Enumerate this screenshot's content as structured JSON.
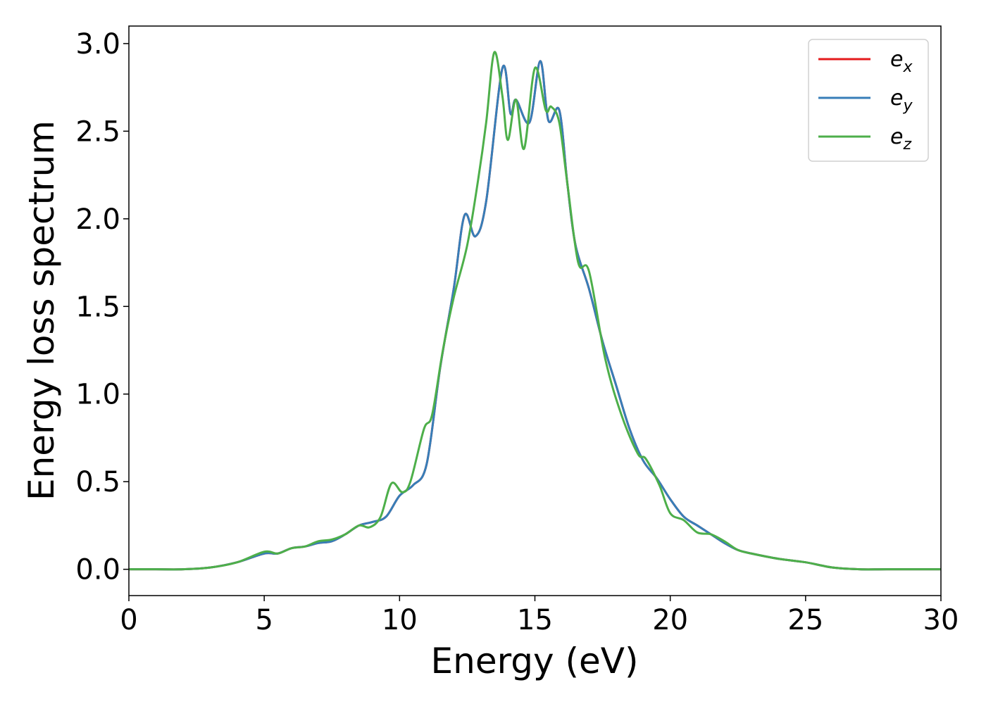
{
  "chart_data": {
    "type": "line",
    "title": "",
    "xlabel": "Energy (eV)",
    "ylabel": "Energy loss spectrum",
    "xlim": [
      0,
      30
    ],
    "ylim": [
      -0.15,
      3.1
    ],
    "xticks": [
      0,
      5,
      10,
      15,
      20,
      25,
      30
    ],
    "yticks": [
      0.0,
      0.5,
      1.0,
      1.5,
      2.0,
      2.5,
      3.0
    ],
    "xtick_labels": [
      "0",
      "5",
      "10",
      "15",
      "20",
      "25",
      "30"
    ],
    "ytick_labels": [
      "0.0",
      "0.5",
      "1.0",
      "1.5",
      "2.0",
      "2.5",
      "3.0"
    ],
    "grid": false,
    "legend_position": "top-right",
    "series": [
      {
        "name": "e",
        "subscript": "x",
        "color": "#e41a1c",
        "x": [
          0,
          1,
          2,
          3,
          4,
          5,
          5.5,
          6,
          6.5,
          7,
          7.5,
          8,
          8.5,
          9,
          9.5,
          10,
          10.5,
          11,
          11.5,
          12,
          12.4,
          12.8,
          13.2,
          13.8,
          14.1,
          14.3,
          14.8,
          15.2,
          15.5,
          15.9,
          16.2,
          16.5,
          17,
          17.5,
          18,
          18.5,
          19,
          19.5,
          20,
          20.5,
          21,
          21.5,
          22,
          22.5,
          23,
          24,
          25,
          26,
          27,
          28,
          30
        ],
        "y": [
          0.0,
          0.0,
          0.0,
          0.01,
          0.04,
          0.09,
          0.09,
          0.12,
          0.13,
          0.15,
          0.16,
          0.2,
          0.25,
          0.27,
          0.3,
          0.42,
          0.48,
          0.6,
          1.15,
          1.6,
          2.02,
          1.9,
          2.1,
          2.86,
          2.6,
          2.68,
          2.55,
          2.9,
          2.56,
          2.62,
          2.2,
          1.85,
          1.6,
          1.3,
          1.05,
          0.8,
          0.62,
          0.52,
          0.4,
          0.3,
          0.25,
          0.2,
          0.15,
          0.11,
          0.09,
          0.06,
          0.04,
          0.01,
          0.0,
          0.0,
          0.0
        ]
      },
      {
        "name": "e",
        "subscript": "y",
        "color": "#377eb8",
        "x": [
          0,
          1,
          2,
          3,
          4,
          5,
          5.5,
          6,
          6.5,
          7,
          7.5,
          8,
          8.5,
          9,
          9.5,
          10,
          10.5,
          11,
          11.5,
          12,
          12.4,
          12.8,
          13.2,
          13.8,
          14.1,
          14.3,
          14.8,
          15.2,
          15.5,
          15.9,
          16.2,
          16.5,
          17,
          17.5,
          18,
          18.5,
          19,
          19.5,
          20,
          20.5,
          21,
          21.5,
          22,
          22.5,
          23,
          24,
          25,
          26,
          27,
          28,
          30
        ],
        "y": [
          0.0,
          0.0,
          0.0,
          0.01,
          0.04,
          0.09,
          0.09,
          0.12,
          0.13,
          0.15,
          0.16,
          0.2,
          0.25,
          0.27,
          0.3,
          0.42,
          0.48,
          0.6,
          1.15,
          1.6,
          2.02,
          1.9,
          2.1,
          2.86,
          2.6,
          2.68,
          2.55,
          2.9,
          2.56,
          2.62,
          2.2,
          1.85,
          1.6,
          1.3,
          1.05,
          0.8,
          0.62,
          0.52,
          0.4,
          0.3,
          0.25,
          0.2,
          0.15,
          0.11,
          0.09,
          0.06,
          0.04,
          0.01,
          0.0,
          0.0,
          0.0
        ]
      },
      {
        "name": "e",
        "subscript": "z",
        "color": "#4daf4a",
        "x": [
          0,
          1,
          2,
          3,
          4,
          5,
          5.5,
          6,
          6.5,
          7,
          7.5,
          8,
          8.5,
          8.9,
          9.3,
          9.7,
          10.1,
          10.4,
          10.9,
          11.2,
          11.6,
          12,
          12.5,
          12.9,
          13.2,
          13.5,
          13.8,
          14.0,
          14.3,
          14.6,
          15.0,
          15.4,
          15.6,
          15.9,
          16.2,
          16.6,
          17.0,
          17.6,
          18.2,
          18.8,
          19.1,
          19.6,
          20.0,
          20.5,
          21.0,
          21.5,
          22.0,
          22.5,
          23,
          24,
          25,
          26,
          27,
          28,
          30
        ],
        "y": [
          0.0,
          0.0,
          0.0,
          0.01,
          0.04,
          0.1,
          0.09,
          0.12,
          0.13,
          0.16,
          0.17,
          0.2,
          0.25,
          0.24,
          0.3,
          0.49,
          0.44,
          0.5,
          0.8,
          0.88,
          1.25,
          1.55,
          1.85,
          2.22,
          2.55,
          2.95,
          2.7,
          2.45,
          2.68,
          2.4,
          2.86,
          2.62,
          2.64,
          2.55,
          2.2,
          1.75,
          1.7,
          1.2,
          0.88,
          0.66,
          0.63,
          0.48,
          0.32,
          0.28,
          0.21,
          0.2,
          0.16,
          0.11,
          0.09,
          0.06,
          0.04,
          0.01,
          0.0,
          0.0,
          0.0
        ]
      }
    ]
  }
}
